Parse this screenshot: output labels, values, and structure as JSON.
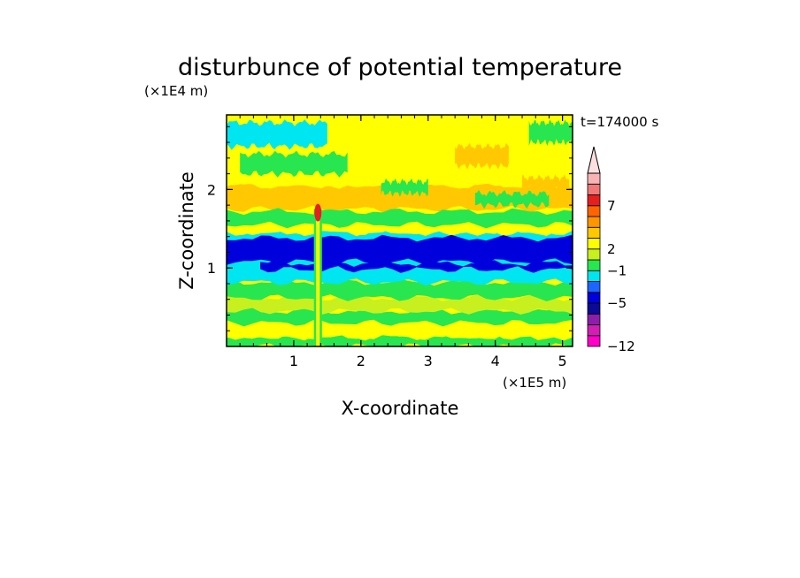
{
  "chart_data": {
    "type": "heatmap",
    "title": "disturbunce of potential temperature",
    "xlabel": "X-coordinate",
    "ylabel": "Z-coordinate",
    "x_unit": "(×1E5 m)",
    "y_unit": "(×1E4 m)",
    "time_label": "t=174000 s",
    "xlim": [
      0,
      5.15
    ],
    "ylim": [
      0,
      2.95
    ],
    "x_ticks": [
      1,
      2,
      3,
      4,
      5
    ],
    "y_ticks": [
      1,
      2
    ],
    "colorbar": {
      "labels": [
        {
          "text": "7",
          "level": 7
        },
        {
          "text": "2",
          "level": 2
        },
        {
          "text": "−1",
          "level": -1
        },
        {
          "text": "−5",
          "level": -5
        },
        {
          "text": "−12",
          "level": -12
        }
      ],
      "bands": [
        {
          "color": "#ff00c8"
        },
        {
          "color": "#d21eb4"
        },
        {
          "color": "#8c1eaa"
        },
        {
          "color": "#0a0a96"
        },
        {
          "color": "#0000dc"
        },
        {
          "color": "#1e64ff"
        },
        {
          "color": "#00e6f0"
        },
        {
          "color": "#28e650"
        },
        {
          "color": "#c8f01e"
        },
        {
          "color": "#ffff00"
        },
        {
          "color": "#ffc800"
        },
        {
          "color": "#ff9600"
        },
        {
          "color": "#ff6400"
        },
        {
          "color": "#e61e1e"
        },
        {
          "color": "#f07878"
        },
        {
          "color": "#f8b4b4"
        }
      ],
      "overflow_color": "#fce0e0"
    },
    "layers": [
      {
        "z_min": 0.0,
        "z_max": 0.12,
        "color": "#28e650"
      },
      {
        "z_min": 0.12,
        "z_max": 0.3,
        "color": "#ffff00"
      },
      {
        "z_min": 0.3,
        "z_max": 0.45,
        "color": "#28e650"
      },
      {
        "z_min": 0.45,
        "z_max": 0.62,
        "color": "#c8f01e"
      },
      {
        "z_min": 0.62,
        "z_max": 0.82,
        "color": "#28e650"
      },
      {
        "z_min": 0.82,
        "z_max": 1.45,
        "color": "#00e6f0"
      },
      {
        "z_min": 1.45,
        "z_max": 1.75,
        "color": "#ffff00"
      },
      {
        "z_min": 1.75,
        "z_max": 2.05,
        "color": "#ffc800"
      },
      {
        "z_min": 2.05,
        "z_max": 2.35,
        "color": "#ffff00"
      },
      {
        "z_min": 2.35,
        "z_max": 2.6,
        "color": "#ffff00"
      },
      {
        "z_min": 2.6,
        "z_max": 2.95,
        "color": "#ffff00"
      }
    ],
    "features": [
      {
        "x": [
          0.0,
          5.15
        ],
        "z": [
          1.08,
          1.38
        ],
        "color": "#0000dc",
        "level": -5
      },
      {
        "x": [
          0.5,
          5.15
        ],
        "z": [
          0.98,
          1.06
        ],
        "color": "#0000dc",
        "level": -5
      },
      {
        "x": [
          0.0,
          5.15
        ],
        "z": [
          1.55,
          1.72
        ],
        "color": "#28e650",
        "level": 0
      },
      {
        "x": [
          0.0,
          1.5
        ],
        "z": [
          2.55,
          2.85
        ],
        "color": "#00e6f0",
        "level": -1
      },
      {
        "x": [
          0.2,
          1.8
        ],
        "z": [
          2.2,
          2.45
        ],
        "color": "#28e650",
        "level": 0
      },
      {
        "x": [
          3.4,
          4.2
        ],
        "z": [
          2.3,
          2.55
        ],
        "color": "#ffc800",
        "level": 2
      },
      {
        "x": [
          4.4,
          5.1
        ],
        "z": [
          2.0,
          2.15
        ],
        "color": "#ffc800",
        "level": 2
      },
      {
        "x": [
          2.3,
          3.0
        ],
        "z": [
          1.95,
          2.1
        ],
        "color": "#28e650",
        "level": 0
      },
      {
        "x": [
          3.7,
          4.8
        ],
        "z": [
          1.8,
          1.95
        ],
        "color": "#28e650",
        "level": 0
      },
      {
        "x": [
          4.5,
          5.15
        ],
        "z": [
          2.6,
          2.85
        ],
        "color": "#28e650",
        "level": 0
      },
      {
        "x": [
          1.3,
          1.42
        ],
        "z": [
          0.0,
          1.75
        ],
        "color": "#e61e1e",
        "level": 7
      }
    ]
  }
}
